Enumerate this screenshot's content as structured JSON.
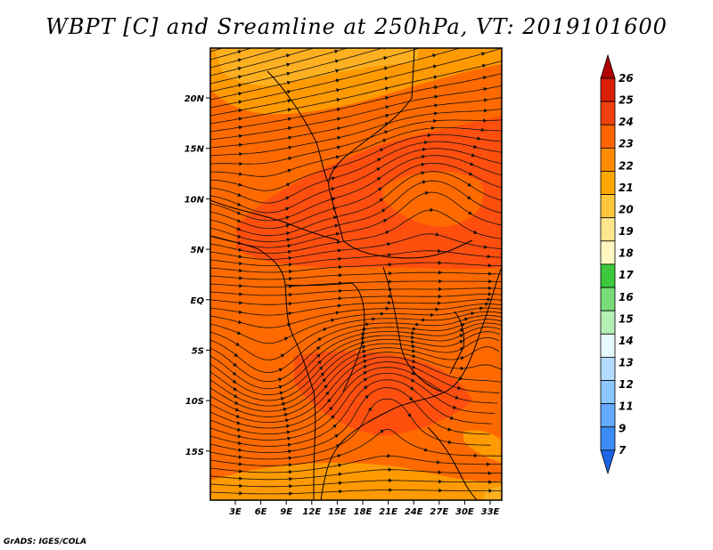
{
  "title": "WBPT [C] and Sreamline at 250hPa, VT: 2019101600",
  "footer": "GrADS: IGES/COLA",
  "map": {
    "lat_labels": [
      "20N",
      "15N",
      "10N",
      "5N",
      "EQ",
      "5S",
      "10S",
      "15S"
    ],
    "lon_labels": [
      "3E",
      "6E",
      "9E",
      "12E",
      "15E",
      "18E",
      "21E",
      "24E",
      "27E",
      "30E",
      "33E"
    ],
    "fill_colors": {
      "t22": "#ff6a00",
      "t23": "#ff4f0f",
      "t21": "#ff9a00",
      "t20": "#ffb020"
    }
  },
  "colorbar": {
    "labels": [
      "26",
      "25",
      "24",
      "23",
      "22",
      "21",
      "20",
      "19",
      "18",
      "17",
      "16",
      "15",
      "14",
      "13",
      "12",
      "11",
      "9",
      "7"
    ],
    "colors": [
      "#b00000",
      "#d81e05",
      "#f0400f",
      "#ff6400",
      "#ff8c00",
      "#ffa800",
      "#ffc83c",
      "#ffe68c",
      "#fff8c0",
      "#3cc83c",
      "#78dc78",
      "#b4f0b4",
      "#e6faff",
      "#b4dcff",
      "#8cc8ff",
      "#64aaff",
      "#3c8cf5",
      "#1e64e6"
    ]
  }
}
